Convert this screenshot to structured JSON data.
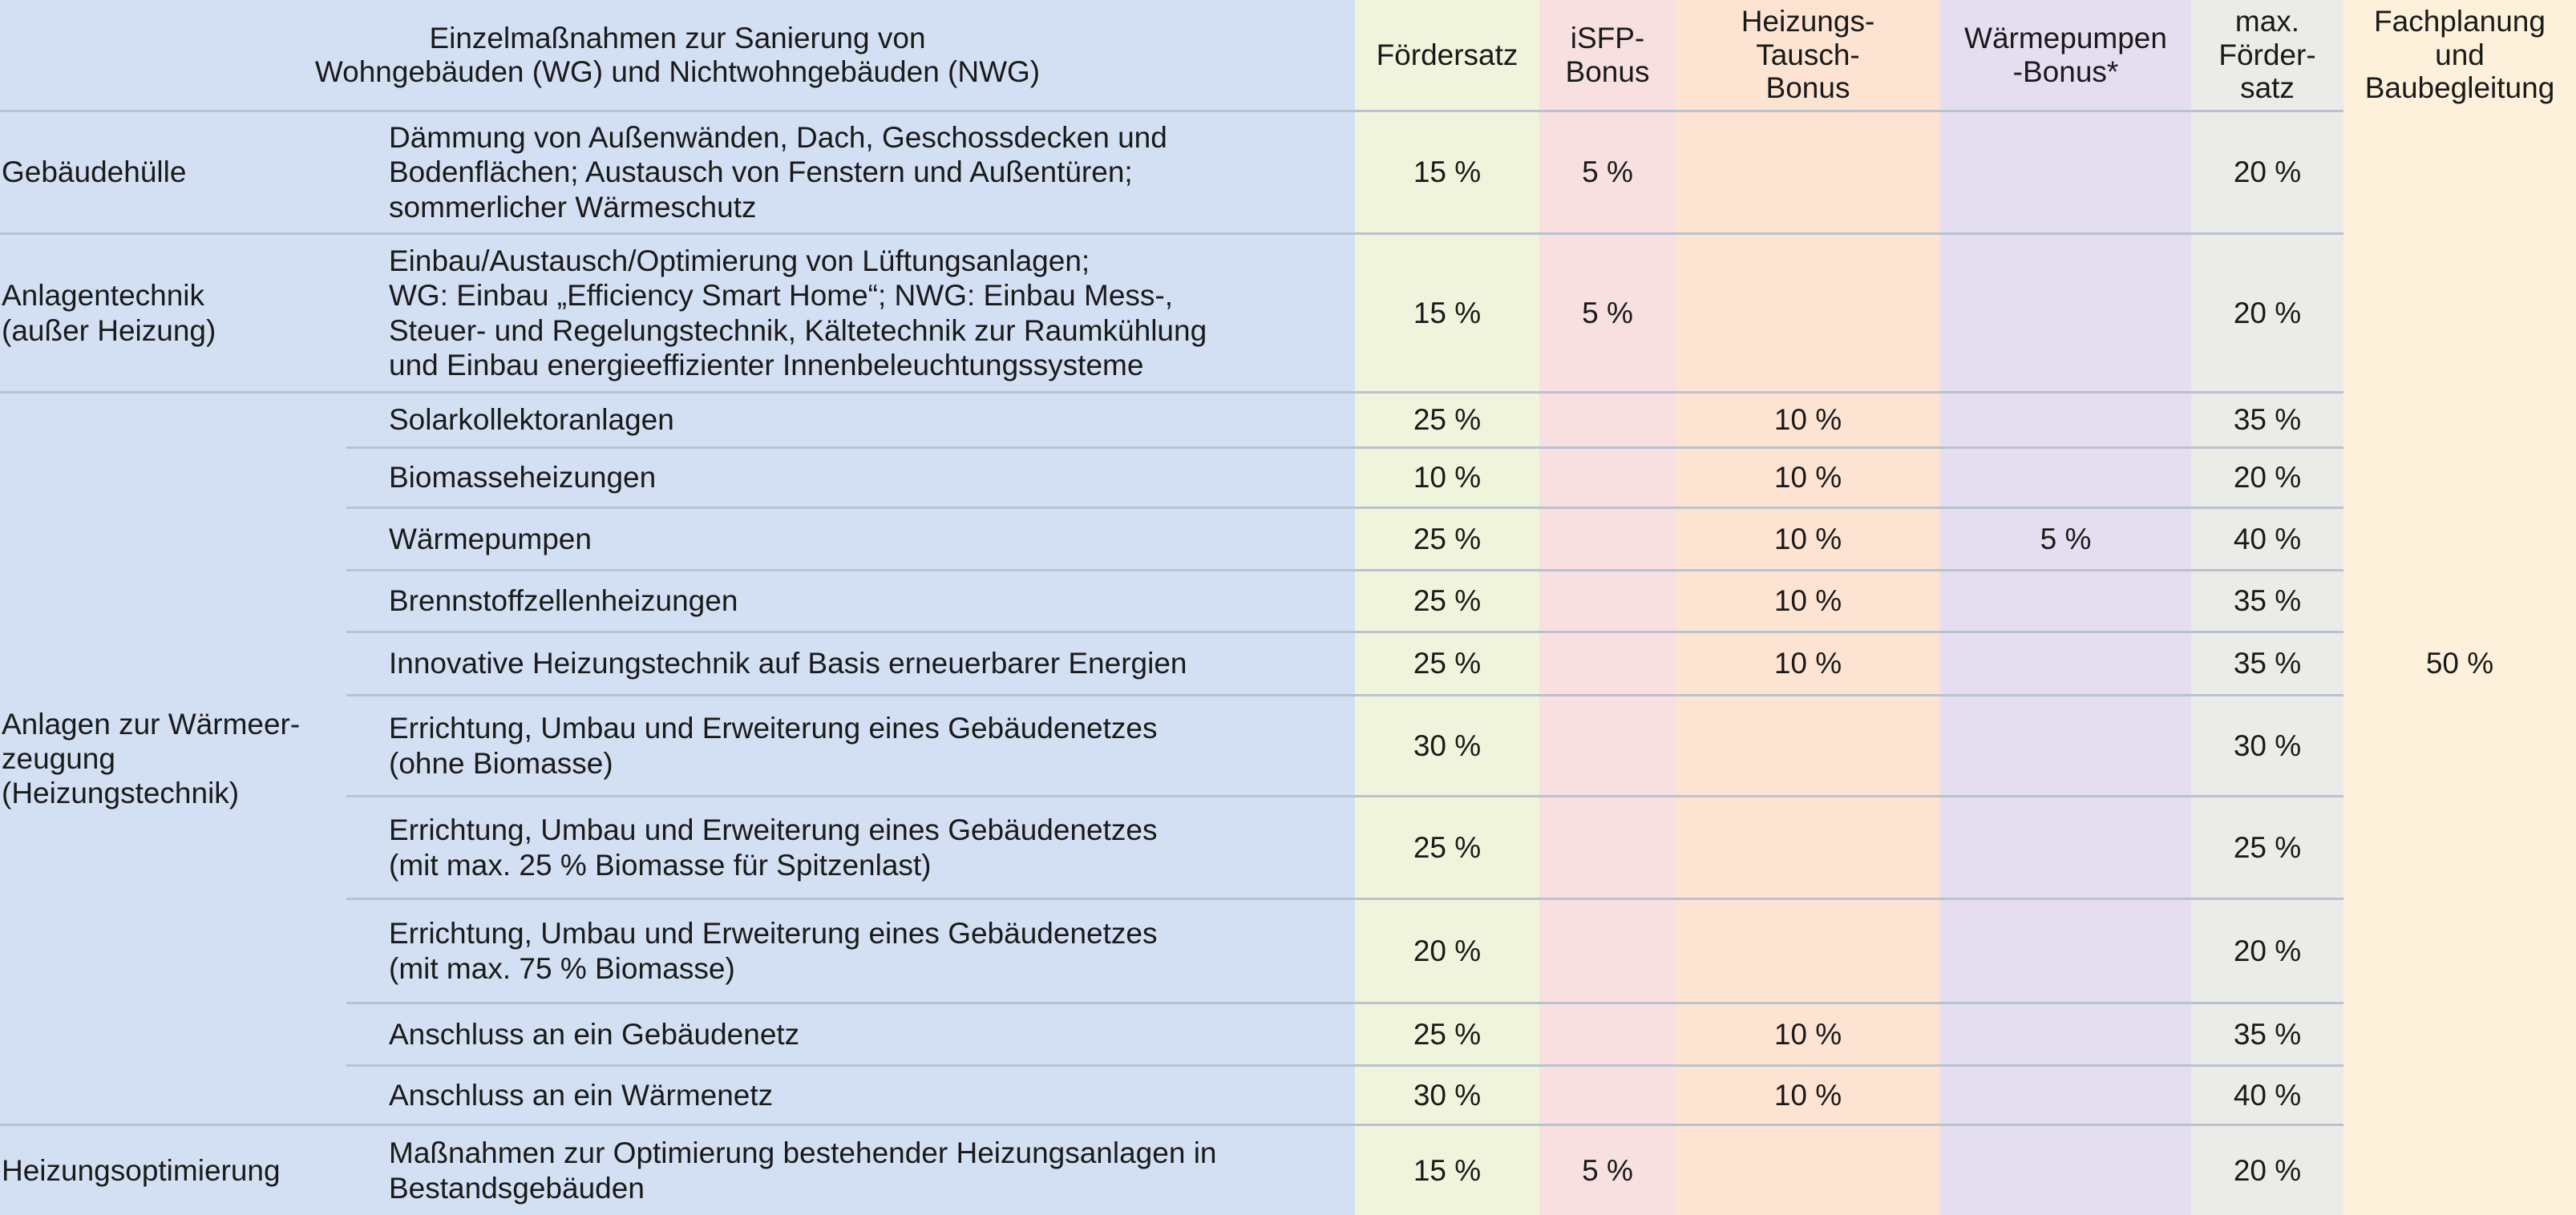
{
  "header": {
    "title": "Einzelmaßnahmen zur Sanierung von\nWohngebäuden (WG) und Nichtwohngebäuden (NWG)",
    "foerdersatz": "Fördersatz",
    "isfp_bonus": "iSFP-\nBonus",
    "heizungs_tausch_bonus": "Heizungs-\nTausch-\nBonus",
    "waermepumpen_bonus": "Wärmepumpen\n-Bonus*",
    "max_foerdersatz": "max.\nFörder-\nsatz",
    "fachplanung": "Fachplanung\nund\nBaubegleitung"
  },
  "categories": {
    "gebaeudehuelle": "Gebäudehülle",
    "anlagentechnik": "Anlagentechnik\n(außer Heizung)",
    "waermeerzeugung": "Anlagen zur Wärmeer-\nzeugung\n(Heizungstechnik)",
    "heizungsoptimierung": "Heizungsoptimierung"
  },
  "fachplanung_value": "50 %",
  "rows": [
    {
      "measure": "Dämmung von Außenwänden, Dach, Geschossdecken und\nBodenflächen; Austausch von Fenstern und Außentüren;\nsommerlicher Wärmeschutz",
      "rate": "15 %",
      "isfp": "5 %",
      "swap": "",
      "hp": "",
      "max": "20 %"
    },
    {
      "measure": "Einbau/Austausch/Optimierung von Lüftungsanlagen;\nWG: Einbau „Efficiency Smart Home“; NWG: Einbau Mess-,\nSteuer- und Regelungstechnik, Kältetechnik zur Raumkühlung\nund Einbau energieeffizienter Innenbeleuchtungssysteme",
      "rate": "15 %",
      "isfp": "5 %",
      "swap": "",
      "hp": "",
      "max": "20 %"
    },
    {
      "measure": "Solarkollektoranlagen",
      "rate": "25 %",
      "isfp": "",
      "swap": "10 %",
      "hp": "",
      "max": "35 %"
    },
    {
      "measure": "Biomasseheizungen",
      "rate": "10 %",
      "isfp": "",
      "swap": "10 %",
      "hp": "",
      "max": "20 %"
    },
    {
      "measure": "Wärmepumpen",
      "rate": "25 %",
      "isfp": "",
      "swap": "10 %",
      "hp": "5 %",
      "max": "40 %"
    },
    {
      "measure": "Brennstoffzellenheizungen",
      "rate": "25 %",
      "isfp": "",
      "swap": "10 %",
      "hp": "",
      "max": "35 %"
    },
    {
      "measure": "Innovative Heizungstechnik auf Basis erneuerbarer Energien",
      "rate": "25 %",
      "isfp": "",
      "swap": "10 %",
      "hp": "",
      "max": "35 %"
    },
    {
      "measure": "Errichtung, Umbau und Erweiterung eines Gebäudenetzes\n(ohne Biomasse)",
      "rate": "30 %",
      "isfp": "",
      "swap": "",
      "hp": "",
      "max": "30 %"
    },
    {
      "measure": "Errichtung, Umbau und Erweiterung eines Gebäudenetzes\n(mit max. 25 % Biomasse für Spitzenlast)",
      "rate": "25 %",
      "isfp": "",
      "swap": "",
      "hp": "",
      "max": "25 %"
    },
    {
      "measure": "Errichtung, Umbau und Erweiterung eines Gebäudenetzes\n(mit max. 75 % Biomasse)",
      "rate": "20 %",
      "isfp": "",
      "swap": "",
      "hp": "",
      "max": "20 %"
    },
    {
      "measure": "Anschluss an ein Gebäudenetz",
      "rate": "25 %",
      "isfp": "",
      "swap": "10 %",
      "hp": "",
      "max": "35 %"
    },
    {
      "measure": "Anschluss an ein Wärmenetz",
      "rate": "30 %",
      "isfp": "",
      "swap": "10 %",
      "hp": "",
      "max": "40 %"
    },
    {
      "measure": "Maßnahmen zur Optimierung bestehender Heizungsanlagen in\nBestandsgebäuden",
      "rate": "15 %",
      "isfp": "5 %",
      "swap": "",
      "hp": "",
      "max": "20 %"
    }
  ]
}
